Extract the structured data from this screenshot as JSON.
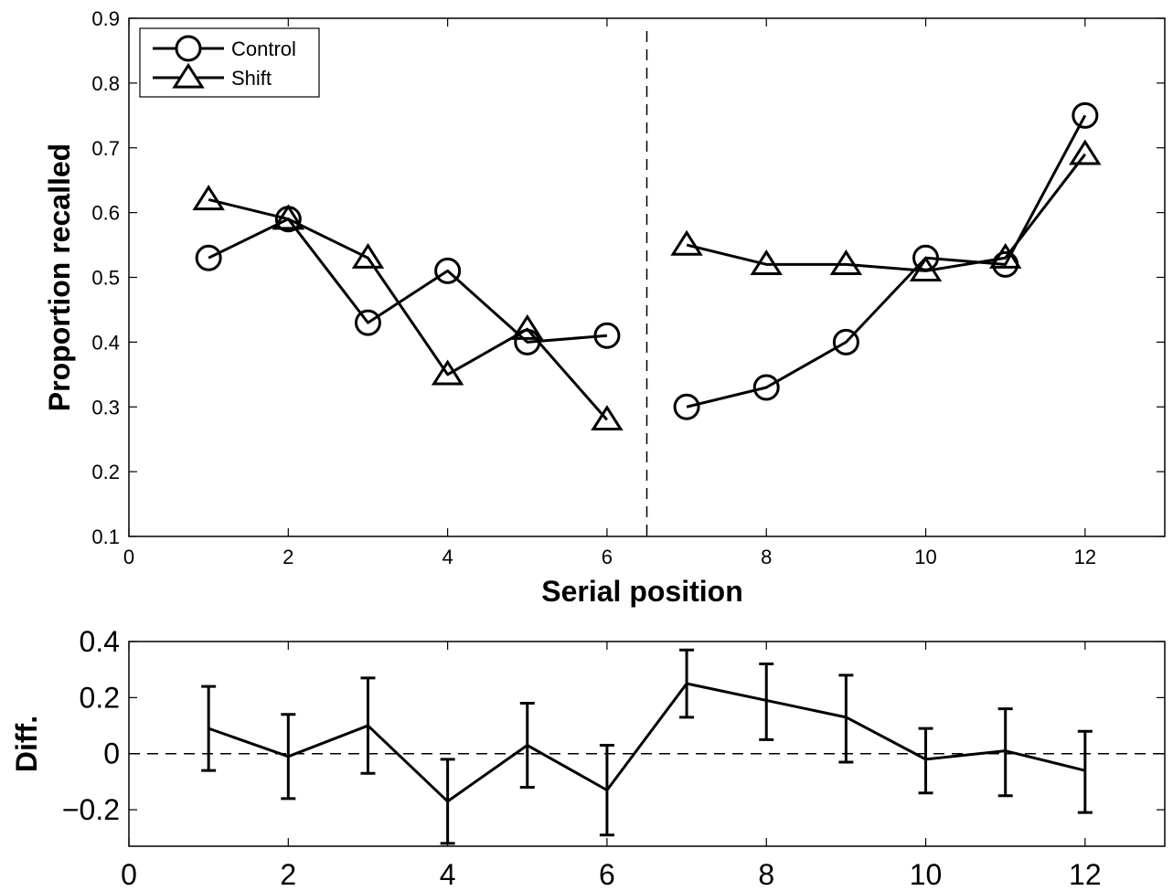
{
  "chart_data": [
    {
      "type": "line",
      "title": "",
      "xlabel": "Serial position",
      "ylabel": "Proportion recalled",
      "xlim": [
        0,
        13
      ],
      "ylim": [
        0.1,
        0.9
      ],
      "xticks": [
        "0",
        "2",
        "4",
        "6",
        "8",
        "10",
        "12"
      ],
      "yticks": [
        "0.1",
        "0.2",
        "0.3",
        "0.4",
        "0.5",
        "0.6",
        "0.7",
        "0.8",
        "0.9"
      ],
      "legend": {
        "position": "top-left",
        "entries": [
          "Control",
          "Shift"
        ]
      },
      "vline_x": 6.5,
      "segments": [
        [
          1,
          6
        ],
        [
          7,
          12
        ]
      ],
      "series": [
        {
          "name": "Control",
          "marker": "circle",
          "x": [
            1,
            2,
            3,
            4,
            5,
            6,
            7,
            8,
            9,
            10,
            11,
            12
          ],
          "values": [
            0.53,
            0.59,
            0.43,
            0.51,
            0.4,
            0.41,
            0.3,
            0.33,
            0.4,
            0.53,
            0.52,
            0.75
          ]
        },
        {
          "name": "Shift",
          "marker": "triangle",
          "x": [
            1,
            2,
            3,
            4,
            5,
            6,
            7,
            8,
            9,
            10,
            11,
            12
          ],
          "values": [
            0.62,
            0.59,
            0.53,
            0.35,
            0.42,
            0.28,
            0.55,
            0.52,
            0.52,
            0.51,
            0.53,
            0.69
          ]
        }
      ],
      "grid": false
    },
    {
      "type": "line",
      "title": "",
      "xlabel": "",
      "ylabel": "Diff.",
      "xlim": [
        0,
        13
      ],
      "ylim": [
        -0.33,
        0.4
      ],
      "xticks": [
        "0",
        "2",
        "4",
        "6",
        "8",
        "10",
        "12"
      ],
      "yticks": [
        "−0.2",
        "0",
        "0.2",
        "0.4"
      ],
      "yticks_values": [
        -0.2,
        0,
        0.2,
        0.4
      ],
      "hline_y": 0,
      "series": [
        {
          "name": "",
          "x": [
            1,
            2,
            3,
            4,
            5,
            6,
            7,
            8,
            9,
            10,
            11,
            12
          ],
          "values": [
            0.09,
            -0.01,
            0.1,
            -0.17,
            0.03,
            -0.13,
            0.25,
            0.19,
            0.13,
            -0.02,
            0.01,
            -0.06
          ],
          "error_lower": [
            -0.06,
            -0.16,
            -0.07,
            -0.32,
            -0.12,
            -0.29,
            0.13,
            0.05,
            -0.03,
            -0.14,
            -0.15,
            -0.21
          ],
          "error_upper": [
            0.24,
            0.14,
            0.27,
            -0.02,
            0.18,
            0.03,
            0.37,
            0.32,
            0.28,
            0.09,
            0.16,
            0.08
          ]
        }
      ],
      "grid": false
    }
  ]
}
